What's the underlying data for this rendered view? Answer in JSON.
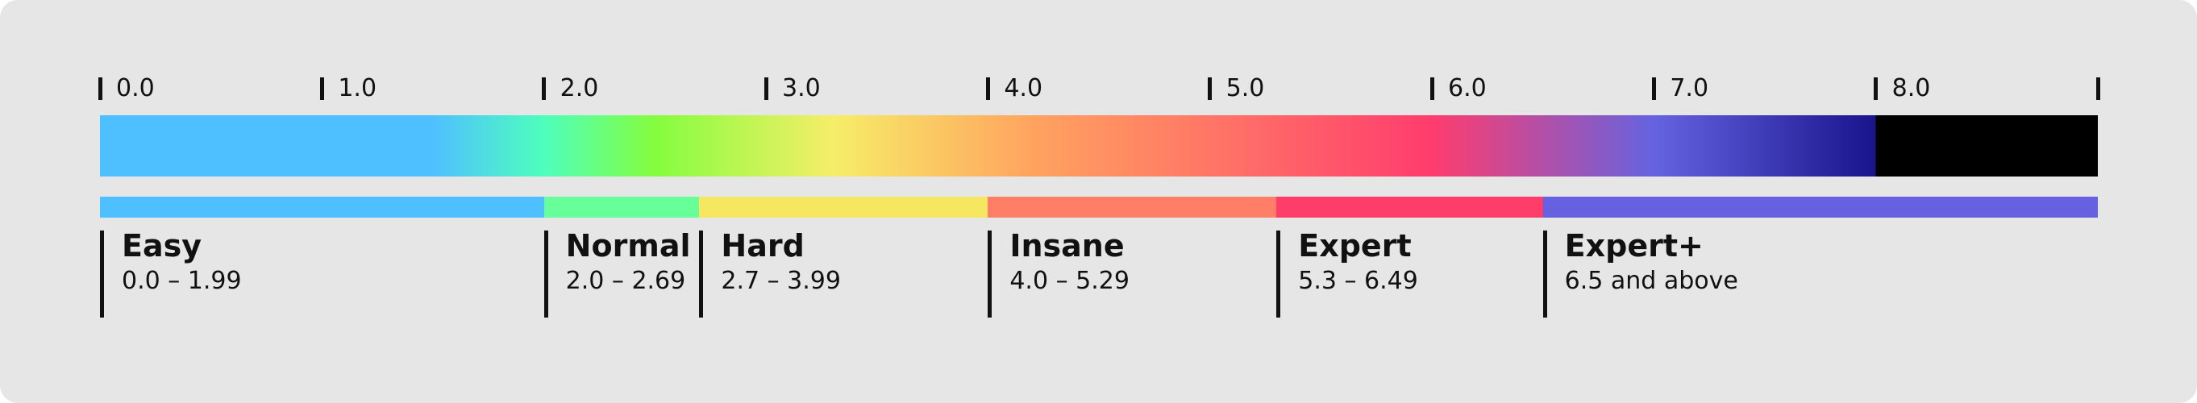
{
  "scale": {
    "min": 0.0,
    "max": 9.0,
    "gradient_cutoff": 8.0,
    "ticks": [
      {
        "value": 0.0,
        "label": "0.0"
      },
      {
        "value": 1.0,
        "label": "1.0"
      },
      {
        "value": 2.0,
        "label": "2.0"
      },
      {
        "value": 3.0,
        "label": "3.0"
      },
      {
        "value": 4.0,
        "label": "4.0"
      },
      {
        "value": 5.0,
        "label": "5.0"
      },
      {
        "value": 6.0,
        "label": "6.0"
      },
      {
        "value": 7.0,
        "label": "7.0"
      },
      {
        "value": 8.0,
        "label": "8.0"
      },
      {
        "value": 9.0,
        "label": ""
      }
    ],
    "gradient_stops": [
      {
        "value": 0.0,
        "color": "#4fc0ff"
      },
      {
        "value": 1.5,
        "color": "#4fc0ff"
      },
      {
        "value": 2.0,
        "color": "#4ffebd"
      },
      {
        "value": 2.5,
        "color": "#84fd3e"
      },
      {
        "value": 3.3,
        "color": "#f6ee68"
      },
      {
        "value": 4.2,
        "color": "#ffa35f"
      },
      {
        "value": 5.0,
        "color": "#ff7666"
      },
      {
        "value": 6.0,
        "color": "#ff3c6e"
      },
      {
        "value": 7.0,
        "color": "#6563e0"
      },
      {
        "value": 8.0,
        "color": "#17148c"
      },
      {
        "value": 8.0,
        "color": "#000000"
      },
      {
        "value": 9.0,
        "color": "#000000"
      }
    ]
  },
  "ranges": [
    {
      "name": "Easy",
      "span": "0.0 – 1.99",
      "start": 0.0,
      "end": 2.0,
      "color": "#4fc0ff"
    },
    {
      "name": "Normal",
      "span": "2.0 – 2.69",
      "start": 2.0,
      "end": 2.7,
      "color": "#66ff99"
    },
    {
      "name": "Hard",
      "span": "2.7 – 3.99",
      "start": 2.7,
      "end": 4.0,
      "color": "#f6e760"
    },
    {
      "name": "Insane",
      "span": "4.0 – 5.29",
      "start": 4.0,
      "end": 5.3,
      "color": "#ff7f66"
    },
    {
      "name": "Expert",
      "span": "5.3 – 6.49",
      "start": 5.3,
      "end": 6.5,
      "color": "#ff3d6b"
    },
    {
      "name": "Expert+",
      "span": "6.5 and above",
      "start": 6.5,
      "end": 9.0,
      "color": "#6661e0"
    }
  ]
}
